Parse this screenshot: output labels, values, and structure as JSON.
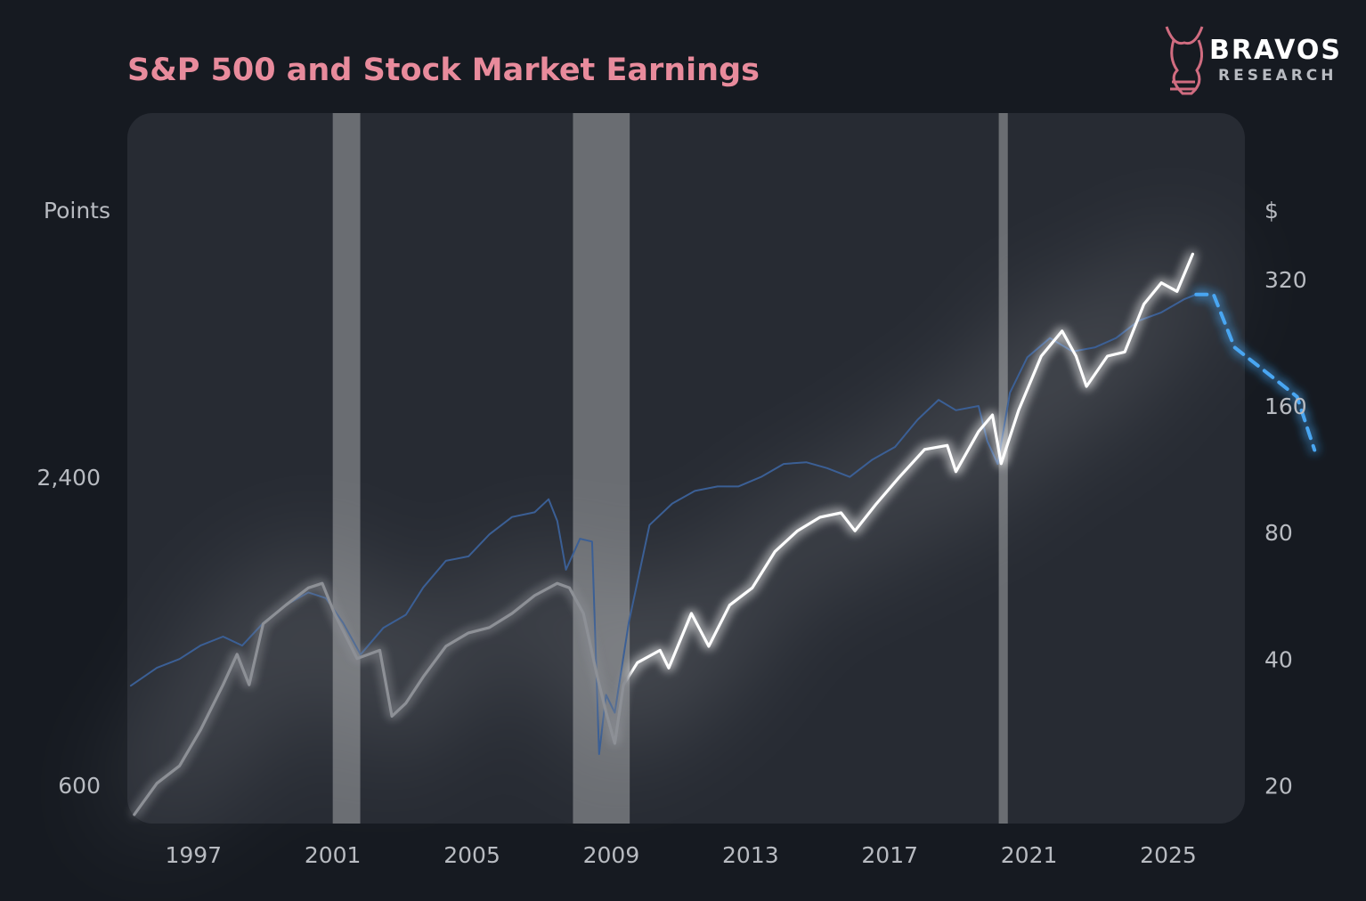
{
  "brand": {
    "name": "BRAVOS",
    "tagline": "RESEARCH"
  },
  "chart_data": {
    "type": "line",
    "title": "S&P 500 and Stock Market Earnings",
    "y_label": "Points",
    "y2_label": "$",
    "log_scale": true,
    "xlim": [
      1995.1,
      2027.2
    ],
    "xticks": [
      1997,
      2001,
      2005,
      2009,
      2013,
      2017,
      2021,
      2025
    ],
    "ylim": [
      509,
      12450
    ],
    "yticks": [
      600,
      {
        "value": 2400,
        "label": "2,400"
      }
    ],
    "y2lim": [
      16.4,
      805
    ],
    "y2ticks": [
      20,
      40,
      80,
      160,
      320
    ],
    "recessions": [
      [
        2001.0,
        2001.79
      ],
      [
        2007.9,
        2009.53
      ],
      [
        2020.13,
        2020.39
      ]
    ],
    "series": [
      {
        "color": "#ffffff",
        "x": [
          1995.3,
          1995.95,
          1996.6,
          1997.2,
          1997.85,
          1998.25,
          1998.6,
          1999.0,
          1999.65,
          2000.3,
          2000.7,
          2001.05,
          2001.7,
          2002.35,
          2002.7,
          2003.1,
          2003.6,
          2004.25,
          2004.9,
          2005.5,
          2006.15,
          2006.8,
          2007.45,
          2007.8,
          2008.2,
          2008.6,
          2008.85,
          2009.1,
          2009.35,
          2009.75,
          2010.4,
          2010.65,
          2011.3,
          2011.8,
          2012.4,
          2013.05,
          2013.7,
          2014.35,
          2015.0,
          2015.6,
          2016.0,
          2016.6,
          2017.25,
          2018.0,
          2018.65,
          2018.9,
          2019.55,
          2019.95,
          2020.2,
          2020.7,
          2021.35,
          2021.95,
          2022.35,
          2022.65,
          2023.25,
          2023.75,
          2024.3,
          2024.8,
          2025.25,
          2025.7
        ],
        "values": [
          530,
          610,
          660,
          775,
          950,
          1090,
          950,
          1250,
          1360,
          1470,
          1500,
          1310,
          1070,
          1110,
          825,
          875,
          985,
          1130,
          1200,
          1230,
          1310,
          1420,
          1500,
          1470,
          1310,
          985,
          840,
          730,
          950,
          1050,
          1110,
          1025,
          1310,
          1130,
          1360,
          1470,
          1730,
          1900,
          2020,
          2060,
          1900,
          2140,
          2410,
          2740,
          2790,
          2480,
          2970,
          3200,
          2570,
          3270,
          4170,
          4670,
          4170,
          3640,
          4170,
          4250,
          5270,
          5800,
          5580,
          6600
        ]
      },
      {
        "color": "#3b5f95",
        "axis": "y2",
        "x": [
          1995.2,
          1995.95,
          1996.6,
          1997.2,
          1997.85,
          1998.4,
          1999.0,
          1999.65,
          2000.3,
          2000.8,
          2001.3,
          2001.8,
          2002.45,
          2003.1,
          2003.6,
          2004.25,
          2004.9,
          2005.5,
          2006.15,
          2006.8,
          2007.2,
          2007.45,
          2007.7,
          2008.1,
          2008.45,
          2008.65,
          2008.85,
          2009.1,
          2009.5,
          2010.1,
          2010.75,
          2011.4,
          2012.05,
          2012.65,
          2013.3,
          2013.95,
          2014.6,
          2015.2,
          2015.85,
          2016.5,
          2017.15,
          2017.8,
          2018.4,
          2018.9,
          2019.55,
          2019.8,
          2020.1,
          2020.45,
          2020.95,
          2021.6,
          2022.25,
          2022.9,
          2023.5,
          2024.15,
          2024.8,
          2025.45,
          2025.8
        ],
        "values": [
          34.9,
          38.5,
          40.4,
          43.5,
          45.7,
          43.5,
          49.2,
          54.3,
          58.2,
          56.4,
          49.2,
          41.4,
          47.9,
          51.5,
          59.8,
          69.2,
          70.9,
          80,
          88,
          90.3,
          97,
          86.1,
          65.9,
          78.1,
          76.9,
          24,
          33.2,
          30.1,
          49.2,
          84.2,
          94.7,
          101.5,
          104,
          104,
          109.6,
          117.7,
          118.8,
          115,
          109.6,
          120.5,
          129.2,
          150,
          167.2,
          157.9,
          161.7,
          133.4,
          117.7,
          173.8,
          211,
          234.6,
          217.9,
          223,
          234.6,
          258,
          270,
          290,
          298
        ]
      },
      {
        "color": "#4aa6f2",
        "axis": "y2",
        "dashed": true,
        "x": [
          2025.8,
          2026.3,
          2026.9,
          2027.9,
          2028.7,
          2029.2
        ],
        "values": [
          298,
          298,
          223,
          192,
          170,
          127
        ]
      }
    ]
  }
}
